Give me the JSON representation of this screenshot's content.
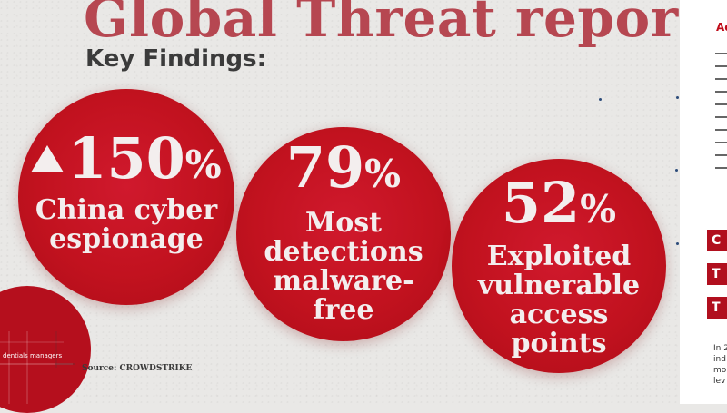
{
  "header": {
    "title": "Global Threat report",
    "subtitle": "Key Findings:"
  },
  "findings": [
    {
      "value": "150",
      "unit": "%",
      "trend": "up",
      "label_lines": [
        "China cyber",
        "espionage"
      ]
    },
    {
      "value": "79",
      "unit": "%",
      "label_lines": [
        "Most",
        "detections",
        "malware-",
        "free"
      ]
    },
    {
      "value": "52",
      "unit": "%",
      "label_lines": [
        "Exploited",
        "vulnerable",
        "access",
        "points"
      ]
    }
  ],
  "source": "Source: CROWDSTRIKE",
  "background_caption": "dentials managers",
  "side_panel": {
    "heading": "Ad",
    "boxes": [
      "C",
      "T",
      "T"
    ],
    "footer_lines": [
      "In 2",
      "ind",
      "mo",
      "lev"
    ]
  },
  "colors": {
    "accent": "#c2121f",
    "title": "#b23a45",
    "text_light": "#f3eeee"
  }
}
